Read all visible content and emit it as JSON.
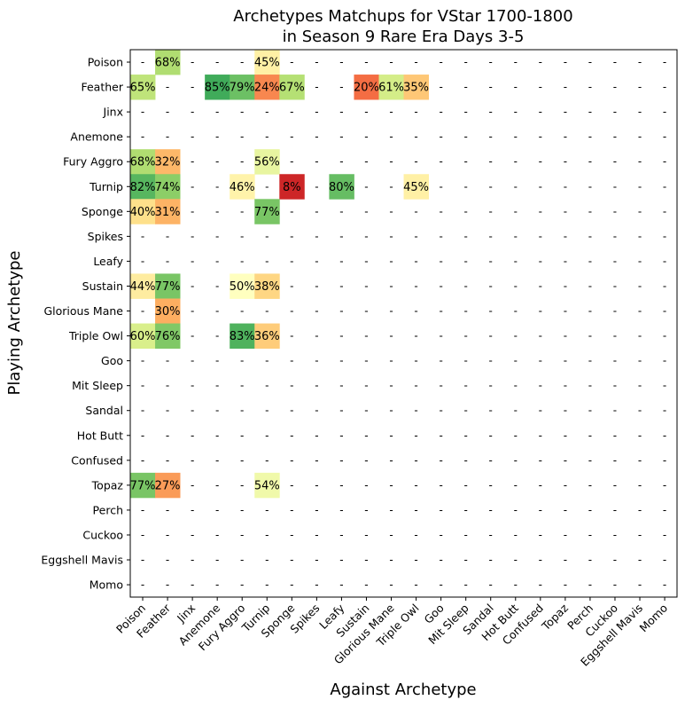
{
  "chart_data": {
    "type": "heatmap",
    "title_line1": "Archetypes Matchups for VStar 1700-1800",
    "title_line2": "in Season 9 Rare Era Days 3-5",
    "xlabel": "Against Archetype",
    "ylabel": "Playing Archetype",
    "missing_marker": "-",
    "value_suffix": "%",
    "color_scale": "red-yellow-green",
    "vmin": 0,
    "vmax": 100,
    "rows": [
      "Poison",
      "Feather",
      "Jinx",
      "Anemone",
      "Fury Aggro",
      "Turnip",
      "Sponge",
      "Spikes",
      "Leafy",
      "Sustain",
      "Glorious Mane",
      "Triple Owl",
      "Goo",
      "Mit Sleep",
      "Sandal",
      "Hot Butt",
      "Confused",
      "Topaz",
      "Perch",
      "Cuckoo",
      "Eggshell Mavis",
      "Momo"
    ],
    "columns": [
      "Poison",
      "Feather",
      "Jinx",
      "Anemone",
      "Fury Aggro",
      "Turnip",
      "Sponge",
      "Spikes",
      "Leafy",
      "Sustain",
      "Glorious Mane",
      "Triple Owl",
      "Goo",
      "Mit Sleep",
      "Sandal",
      "Hot Butt",
      "Confused",
      "Topaz",
      "Perch",
      "Cuckoo",
      "Eggshell Mavis",
      "Momo"
    ],
    "values": [
      [
        null,
        68,
        null,
        null,
        null,
        45,
        null,
        null,
        null,
        null,
        null,
        null,
        null,
        null,
        null,
        null,
        null,
        null,
        null,
        null,
        null,
        null
      ],
      [
        65,
        null,
        null,
        85,
        79,
        24,
        67,
        null,
        null,
        20,
        61,
        35,
        null,
        null,
        null,
        null,
        null,
        null,
        null,
        null,
        null,
        null
      ],
      [
        null,
        null,
        null,
        null,
        null,
        null,
        null,
        null,
        null,
        null,
        null,
        null,
        null,
        null,
        null,
        null,
        null,
        null,
        null,
        null,
        null,
        null
      ],
      [
        null,
        null,
        null,
        null,
        null,
        null,
        null,
        null,
        null,
        null,
        null,
        null,
        null,
        null,
        null,
        null,
        null,
        null,
        null,
        null,
        null,
        null
      ],
      [
        68,
        32,
        null,
        null,
        null,
        56,
        null,
        null,
        null,
        null,
        null,
        null,
        null,
        null,
        null,
        null,
        null,
        null,
        null,
        null,
        null,
        null
      ],
      [
        82,
        74,
        null,
        null,
        46,
        null,
        8,
        null,
        80,
        null,
        null,
        45,
        null,
        null,
        null,
        null,
        null,
        null,
        null,
        null,
        null,
        null
      ],
      [
        40,
        31,
        null,
        null,
        null,
        77,
        null,
        null,
        null,
        null,
        null,
        null,
        null,
        null,
        null,
        null,
        null,
        null,
        null,
        null,
        null,
        null
      ],
      [
        null,
        null,
        null,
        null,
        null,
        null,
        null,
        null,
        null,
        null,
        null,
        null,
        null,
        null,
        null,
        null,
        null,
        null,
        null,
        null,
        null,
        null
      ],
      [
        null,
        null,
        null,
        null,
        null,
        null,
        null,
        null,
        null,
        null,
        null,
        null,
        null,
        null,
        null,
        null,
        null,
        null,
        null,
        null,
        null,
        null
      ],
      [
        44,
        77,
        null,
        null,
        50,
        38,
        null,
        null,
        null,
        null,
        null,
        null,
        null,
        null,
        null,
        null,
        null,
        null,
        null,
        null,
        null,
        null
      ],
      [
        null,
        30,
        null,
        null,
        null,
        null,
        null,
        null,
        null,
        null,
        null,
        null,
        null,
        null,
        null,
        null,
        null,
        null,
        null,
        null,
        null,
        null
      ],
      [
        60,
        76,
        null,
        null,
        83,
        36,
        null,
        null,
        null,
        null,
        null,
        null,
        null,
        null,
        null,
        null,
        null,
        null,
        null,
        null,
        null,
        null
      ],
      [
        null,
        null,
        null,
        null,
        null,
        null,
        null,
        null,
        null,
        null,
        null,
        null,
        null,
        null,
        null,
        null,
        null,
        null,
        null,
        null,
        null,
        null
      ],
      [
        null,
        null,
        null,
        null,
        null,
        null,
        null,
        null,
        null,
        null,
        null,
        null,
        null,
        null,
        null,
        null,
        null,
        null,
        null,
        null,
        null,
        null
      ],
      [
        null,
        null,
        null,
        null,
        null,
        null,
        null,
        null,
        null,
        null,
        null,
        null,
        null,
        null,
        null,
        null,
        null,
        null,
        null,
        null,
        null,
        null
      ],
      [
        null,
        null,
        null,
        null,
        null,
        null,
        null,
        null,
        null,
        null,
        null,
        null,
        null,
        null,
        null,
        null,
        null,
        null,
        null,
        null,
        null,
        null
      ],
      [
        null,
        null,
        null,
        null,
        null,
        null,
        null,
        null,
        null,
        null,
        null,
        null,
        null,
        null,
        null,
        null,
        null,
        null,
        null,
        null,
        null,
        null
      ],
      [
        77,
        27,
        null,
        null,
        null,
        54,
        null,
        null,
        null,
        null,
        null,
        null,
        null,
        null,
        null,
        null,
        null,
        null,
        null,
        null,
        null,
        null
      ],
      [
        null,
        null,
        null,
        null,
        null,
        null,
        null,
        null,
        null,
        null,
        null,
        null,
        null,
        null,
        null,
        null,
        null,
        null,
        null,
        null,
        null,
        null
      ],
      [
        null,
        null,
        null,
        null,
        null,
        null,
        null,
        null,
        null,
        null,
        null,
        null,
        null,
        null,
        null,
        null,
        null,
        null,
        null,
        null,
        null,
        null
      ],
      [
        null,
        null,
        null,
        null,
        null,
        null,
        null,
        null,
        null,
        null,
        null,
        null,
        null,
        null,
        null,
        null,
        null,
        null,
        null,
        null,
        null,
        null
      ],
      [
        null,
        null,
        null,
        null,
        null,
        null,
        null,
        null,
        null,
        null,
        null,
        null,
        null,
        null,
        null,
        null,
        null,
        null,
        null,
        null,
        null,
        null
      ]
    ]
  }
}
